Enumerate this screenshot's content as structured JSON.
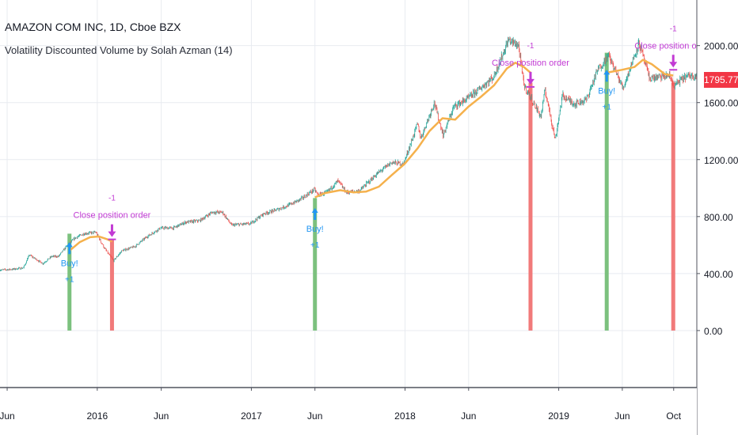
{
  "header": {
    "title": "AMAZON COM INC, 1D, Cboe BZX",
    "indicator": "Volatility Discounted Volume by Solah Azman (14)"
  },
  "colors": {
    "price_up": "#26a69a",
    "price_down": "#ef5350",
    "moving_average": "#f5b14c",
    "buy_bar": "#7cc17e",
    "sell_bar": "#f17a7a",
    "buy_signal": "#2196f3",
    "sell_signal": "#c23bd4",
    "price_tag": "#f23645",
    "grid": "#e8ebf0"
  },
  "chart_data": {
    "type": "line",
    "title": "AMAZON COM INC, 1D, Cboe BZX",
    "xlabel": "",
    "ylabel": "",
    "x_range": [
      "2015-05-15",
      "2019-11-25"
    ],
    "ylim": [
      -400,
      2320
    ],
    "x_ticks": [
      {
        "date": "2015-06-01",
        "label": "Jun"
      },
      {
        "date": "2016-01-01",
        "label": "2016"
      },
      {
        "date": "2016-06-01",
        "label": "Jun"
      },
      {
        "date": "2017-01-01",
        "label": "2017"
      },
      {
        "date": "2017-06-01",
        "label": "Jun"
      },
      {
        "date": "2018-01-01",
        "label": "2018"
      },
      {
        "date": "2018-06-01",
        "label": "Jun"
      },
      {
        "date": "2019-01-01",
        "label": "2019"
      },
      {
        "date": "2019-06-01",
        "label": "Jun"
      },
      {
        "date": "2019-10-01",
        "label": "Oct"
      }
    ],
    "y_ticks": [
      {
        "value": 0,
        "label": "0.00"
      },
      {
        "value": 400,
        "label": "400.00"
      },
      {
        "value": 800,
        "label": "800.00"
      },
      {
        "value": 1200,
        "label": "1200.00"
      },
      {
        "value": 1600,
        "label": "1600.00"
      },
      {
        "value": 2000,
        "label": "2000.00"
      }
    ],
    "last_price": {
      "value": 1795.77,
      "label": "1795.77"
    },
    "series": [
      {
        "name": "AMAZON COM INC",
        "kind": "price",
        "points": [
          [
            "2015-05-15",
            425
          ],
          [
            "2015-06-15",
            430
          ],
          [
            "2015-07-10",
            440
          ],
          [
            "2015-07-24",
            530
          ],
          [
            "2015-08-25",
            470
          ],
          [
            "2015-09-15",
            520
          ],
          [
            "2015-10-01",
            520
          ],
          [
            "2015-10-23",
            600
          ],
          [
            "2015-11-10",
            650
          ],
          [
            "2015-12-01",
            680
          ],
          [
            "2015-12-29",
            690
          ],
          [
            "2016-01-20",
            570
          ],
          [
            "2016-02-09",
            490
          ],
          [
            "2016-02-29",
            560
          ],
          [
            "2016-03-31",
            590
          ],
          [
            "2016-04-29",
            660
          ],
          [
            "2016-05-31",
            720
          ],
          [
            "2016-06-30",
            720
          ],
          [
            "2016-07-29",
            760
          ],
          [
            "2016-08-31",
            770
          ],
          [
            "2016-09-30",
            830
          ],
          [
            "2016-10-25",
            830
          ],
          [
            "2016-11-15",
            740
          ],
          [
            "2016-12-30",
            750
          ],
          [
            "2017-01-31",
            820
          ],
          [
            "2017-02-28",
            845
          ],
          [
            "2017-03-31",
            880
          ],
          [
            "2017-04-28",
            920
          ],
          [
            "2017-05-31",
            990
          ],
          [
            "2017-06-09",
            950
          ],
          [
            "2017-06-30",
            970
          ],
          [
            "2017-07-26",
            1050
          ],
          [
            "2017-08-15",
            970
          ],
          [
            "2017-09-15",
            980
          ],
          [
            "2017-10-27",
            1100
          ],
          [
            "2017-11-30",
            1180
          ],
          [
            "2017-12-29",
            1170
          ],
          [
            "2018-01-31",
            1450
          ],
          [
            "2018-02-08",
            1350
          ],
          [
            "2018-03-12",
            1600
          ],
          [
            "2018-04-02",
            1370
          ],
          [
            "2018-04-27",
            1570
          ],
          [
            "2018-05-31",
            1630
          ],
          [
            "2018-06-29",
            1700
          ],
          [
            "2018-07-31",
            1780
          ],
          [
            "2018-08-31",
            2010
          ],
          [
            "2018-09-04",
            2040
          ],
          [
            "2018-09-28",
            2000
          ],
          [
            "2018-10-11",
            1720
          ],
          [
            "2018-10-26",
            1640
          ],
          [
            "2018-11-20",
            1500
          ],
          [
            "2018-11-30",
            1690
          ],
          [
            "2018-12-24",
            1340
          ],
          [
            "2019-01-10",
            1650
          ],
          [
            "2019-02-08",
            1590
          ],
          [
            "2019-03-08",
            1620
          ],
          [
            "2019-04-04",
            1830
          ],
          [
            "2019-04-30",
            1930
          ],
          [
            "2019-06-03",
            1700
          ],
          [
            "2019-07-11",
            2020
          ],
          [
            "2019-08-05",
            1770
          ],
          [
            "2019-08-30",
            1780
          ],
          [
            "2019-09-20",
            1790
          ],
          [
            "2019-10-03",
            1720
          ],
          [
            "2019-10-28",
            1780
          ],
          [
            "2019-11-25",
            1796
          ]
        ]
      },
      {
        "name": "Moving average",
        "kind": "ma",
        "points": [
          [
            "2015-10-27",
            560
          ],
          [
            "2015-11-20",
            620
          ],
          [
            "2015-12-15",
            655
          ],
          [
            "2016-01-05",
            660
          ],
          [
            "2016-01-25",
            640
          ],
          [
            "2016-02-05",
            625
          ],
          [
            "2017-06-01",
            935
          ],
          [
            "2017-06-25",
            965
          ],
          [
            "2017-07-31",
            985
          ],
          [
            "2017-08-31",
            970
          ],
          [
            "2017-09-30",
            975
          ],
          [
            "2017-10-31",
            1010
          ],
          [
            "2017-11-30",
            1090
          ],
          [
            "2017-12-31",
            1170
          ],
          [
            "2018-01-31",
            1280
          ],
          [
            "2018-02-28",
            1400
          ],
          [
            "2018-03-31",
            1490
          ],
          [
            "2018-04-30",
            1480
          ],
          [
            "2018-05-31",
            1570
          ],
          [
            "2018-06-30",
            1640
          ],
          [
            "2018-07-31",
            1720
          ],
          [
            "2018-08-31",
            1840
          ],
          [
            "2018-09-20",
            1880
          ],
          [
            "2018-10-10",
            1850
          ],
          [
            "2018-10-26",
            1810
          ],
          [
            "2019-04-25",
            1810
          ],
          [
            "2019-05-31",
            1830
          ],
          [
            "2019-06-30",
            1850
          ],
          [
            "2019-07-20",
            1900
          ],
          [
            "2019-08-10",
            1870
          ],
          [
            "2019-09-10",
            1800
          ],
          [
            "2019-09-30",
            1790
          ]
        ]
      }
    ],
    "volume_bars": [
      {
        "date": "2015-10-27",
        "signal": "buy",
        "value": 680
      },
      {
        "date": "2016-02-05",
        "signal": "sell",
        "value": 640
      },
      {
        "date": "2017-06-01",
        "signal": "buy",
        "value": 930
      },
      {
        "date": "2018-10-26",
        "signal": "sell",
        "value": 1740
      },
      {
        "date": "2019-04-25",
        "signal": "buy",
        "value": 1950
      },
      {
        "date": "2019-09-30",
        "signal": "sell",
        "value": 1740
      }
    ],
    "orders": [
      {
        "date": "2015-10-27",
        "type": "buy",
        "label": "Buy!",
        "qty": "+1",
        "at": 620
      },
      {
        "date": "2016-02-05",
        "type": "close",
        "label": "Close position order",
        "qty": "-1",
        "at": 690
      },
      {
        "date": "2017-06-01",
        "type": "buy",
        "label": "Buy!",
        "qty": "+1",
        "at": 860
      },
      {
        "date": "2018-10-26",
        "type": "close",
        "label": "Close position order",
        "qty": "-1",
        "at": 1760
      },
      {
        "date": "2019-04-25",
        "type": "buy",
        "label": "Buy!",
        "qty": "+1",
        "at": 1830
      },
      {
        "date": "2019-09-30",
        "type": "close",
        "label": "Close position order",
        "qty": "-1",
        "at": 1880
      }
    ],
    "grid": true,
    "legend": "none"
  }
}
